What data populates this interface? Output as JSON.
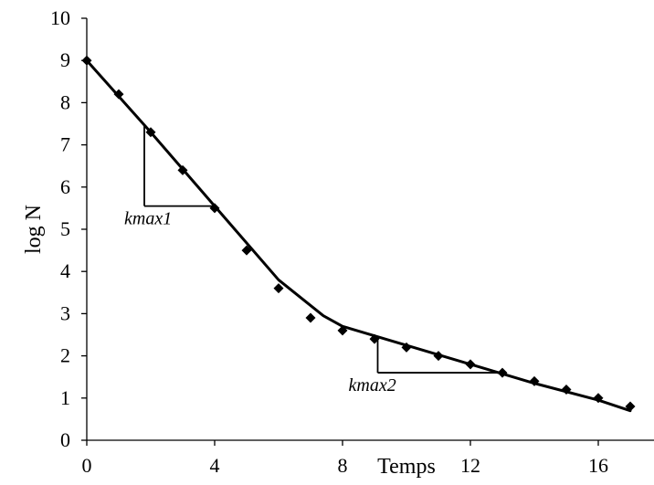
{
  "chart_data": {
    "type": "scatter",
    "xlabel": "Temps",
    "ylabel": "log N",
    "xlim": [
      0,
      18
    ],
    "ylim": [
      0,
      10
    ],
    "x_ticks": [
      0,
      4,
      8,
      12,
      16
    ],
    "y_ticks": [
      0,
      1,
      2,
      3,
      4,
      5,
      6,
      7,
      8,
      9,
      10
    ],
    "grid": false,
    "legend": "none",
    "series": [
      {
        "kind": "scatter",
        "marker": "diamond",
        "x": [
          0,
          1,
          2,
          3,
          4,
          5,
          6,
          7,
          8,
          9,
          10,
          11,
          12,
          13,
          14,
          15,
          16,
          17
        ],
        "y": [
          9.0,
          8.2,
          7.3,
          6.4,
          5.5,
          4.5,
          3.6,
          2.9,
          2.6,
          2.4,
          2.2,
          2.0,
          1.8,
          1.6,
          1.4,
          1.2,
          1.0,
          0.8
        ]
      },
      {
        "kind": "line",
        "x": [
          0,
          2,
          4,
          6,
          7.4,
          8,
          10,
          12,
          14,
          16,
          17
        ],
        "y": [
          9.0,
          7.3,
          5.55,
          3.8,
          2.95,
          2.7,
          2.25,
          1.8,
          1.35,
          0.95,
          0.7
        ]
      }
    ],
    "annotations": [
      {
        "label": "kmax1",
        "vertical": {
          "x": 1.8,
          "y1": 7.45,
          "y2": 5.55
        },
        "horizontal": {
          "y": 5.55,
          "x1": 1.8,
          "x2": 4.0
        }
      },
      {
        "label": "kmax2",
        "vertical": {
          "x": 9.1,
          "y1": 2.42,
          "y2": 1.6
        },
        "horizontal": {
          "y": 1.6,
          "x1": 9.1,
          "x2": 13.0
        }
      }
    ]
  }
}
